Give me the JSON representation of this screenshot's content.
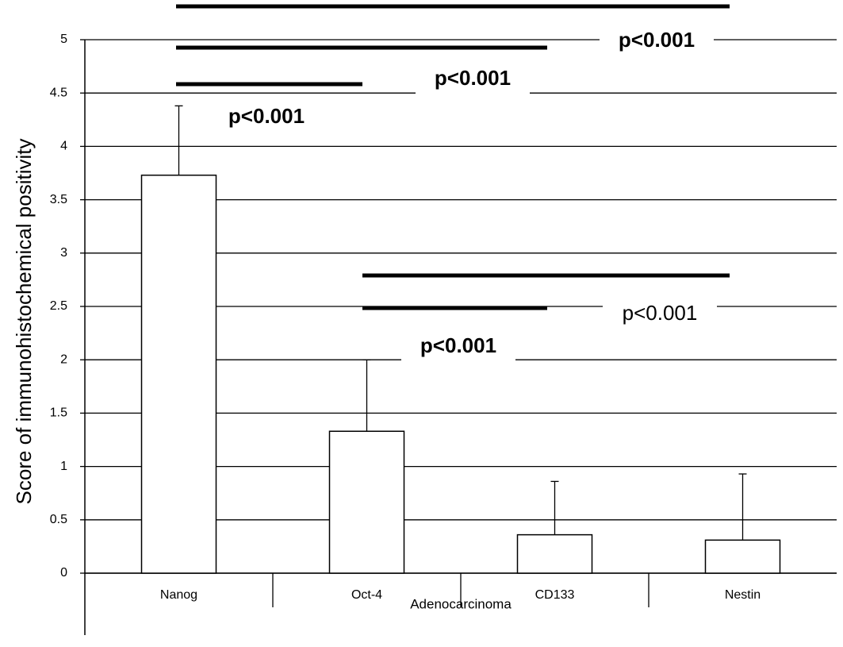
{
  "chart_data": {
    "type": "bar",
    "y_label": "Score of immunohistochemical positivity",
    "x_label": "Adenocarcinoma",
    "categories": [
      "Nanog",
      "Oct-4",
      "CD133",
      "Nestin"
    ],
    "values": [
      3.73,
      1.33,
      0.36,
      0.31
    ],
    "errors": [
      0.65,
      0.67,
      0.5,
      0.62
    ],
    "color": "#ffffff",
    "ylim": [
      0,
      5
    ],
    "yticks": [
      0,
      0.5,
      1,
      1.5,
      2,
      2.5,
      3,
      3.5,
      4,
      4.5,
      5
    ],
    "grid": true,
    "annotations": [
      {
        "text": "p<0.001"
      },
      {
        "text": "p<0.001"
      },
      {
        "text": "p<0.001"
      },
      {
        "text": "p<0.001"
      },
      {
        "text": "p<0.001"
      }
    ]
  }
}
